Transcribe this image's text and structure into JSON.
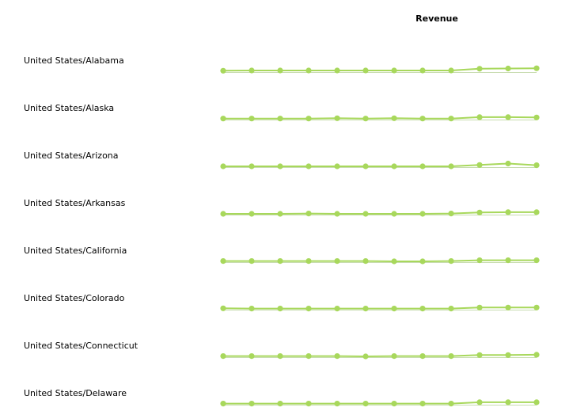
{
  "header": {
    "measure_title": "Revenue"
  },
  "colors": {
    "line": "#a8d85c",
    "marker": "#a8d85c",
    "baseline": "#c8dcb0"
  },
  "chart_data": {
    "type": "line",
    "title": "Revenue",
    "small_multiples": true,
    "grid": false,
    "legend": "none",
    "x_points": 12,
    "ylim": [
      0,
      10
    ],
    "series": [
      {
        "name": "United States/Alabama",
        "values": [
          3.2,
          3.3,
          3.3,
          3.3,
          3.3,
          3.3,
          3.3,
          3.3,
          3.3,
          3.9,
          4.0,
          4.1
        ]
      },
      {
        "name": "United States/Alaska",
        "values": [
          3.1,
          3.1,
          3.1,
          3.1,
          3.2,
          3.1,
          3.2,
          3.1,
          3.1,
          3.6,
          3.6,
          3.5
        ]
      },
      {
        "name": "United States/Arizona",
        "values": [
          3.0,
          3.0,
          3.0,
          3.0,
          3.0,
          3.0,
          3.0,
          3.0,
          3.0,
          3.5,
          4.0,
          3.4
        ]
      },
      {
        "name": "United States/Arkansas",
        "values": [
          3.0,
          3.0,
          3.0,
          3.1,
          3.0,
          3.0,
          3.0,
          3.0,
          3.1,
          3.5,
          3.6,
          3.6
        ]
      },
      {
        "name": "United States/California",
        "values": [
          3.1,
          3.1,
          3.1,
          3.1,
          3.1,
          3.1,
          3.0,
          3.0,
          3.1,
          3.4,
          3.4,
          3.4
        ]
      },
      {
        "name": "United States/Colorado",
        "values": [
          3.2,
          3.1,
          3.1,
          3.1,
          3.1,
          3.1,
          3.1,
          3.1,
          3.1,
          3.5,
          3.5,
          3.5
        ]
      },
      {
        "name": "United States/Connecticut",
        "values": [
          3.1,
          3.1,
          3.1,
          3.1,
          3.1,
          3.0,
          3.1,
          3.1,
          3.1,
          3.5,
          3.5,
          3.6
        ]
      },
      {
        "name": "United States/Delaware",
        "values": [
          3.1,
          3.1,
          3.1,
          3.1,
          3.1,
          3.1,
          3.1,
          3.1,
          3.1,
          3.6,
          3.6,
          3.6
        ]
      }
    ]
  }
}
